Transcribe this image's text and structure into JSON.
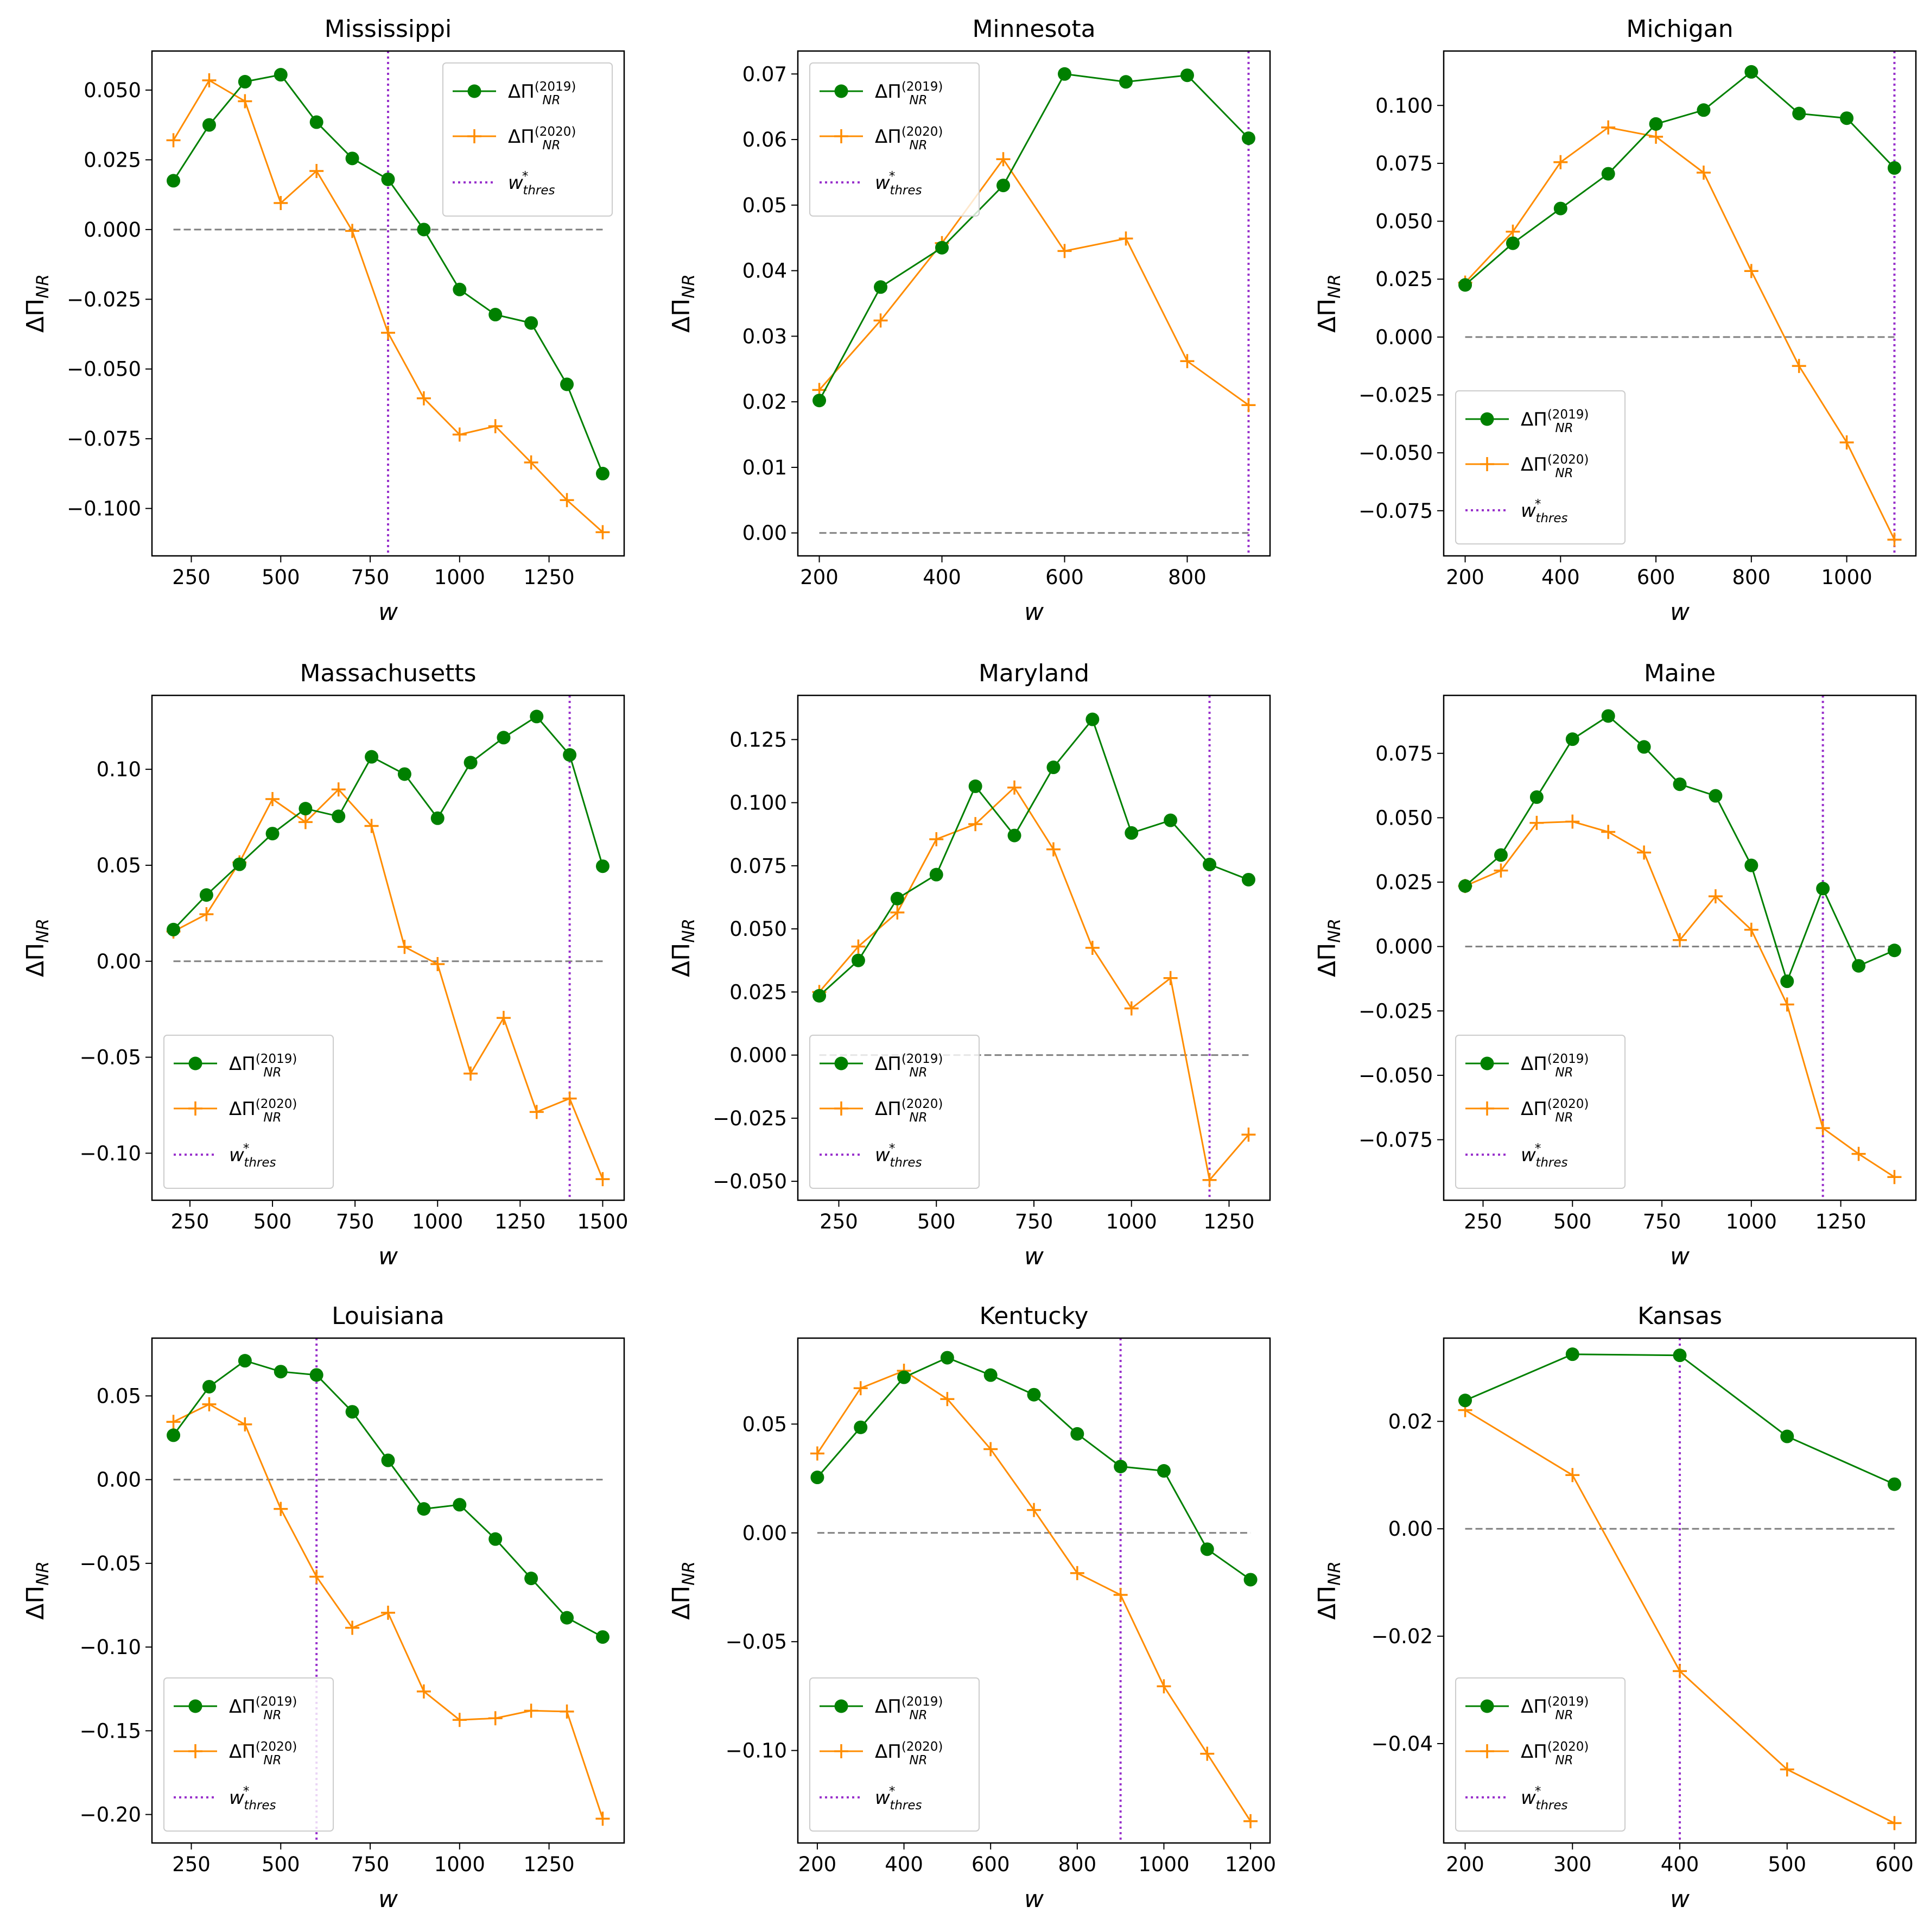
{
  "figure": {
    "ylabel_main": "ΔΠ",
    "ylabel_sub": "NR",
    "xlabel": "w"
  },
  "legend": {
    "series_2019": {
      "main": "ΔΠ",
      "sub": "NR",
      "sup": "(2019)"
    },
    "series_2020": {
      "main": "ΔΠ",
      "sub": "NR",
      "sup": "(2020)"
    },
    "threshold": {
      "main": "w",
      "sub": "thres",
      "sup": "*"
    }
  },
  "colors": {
    "series_2019": "#008000",
    "series_2020": "#ff8c00",
    "threshold": "#9932cc",
    "zero_line": "#808080",
    "axes": "#000000"
  },
  "chart_data": [
    {
      "type": "line",
      "title": "Mississippi",
      "xlabel": "w",
      "ylabel": "ΔΠ_NR",
      "xlim": [
        140,
        1460
      ],
      "ylim": [
        -0.117,
        0.064
      ],
      "xticks": [
        250,
        500,
        750,
        1000,
        1250
      ],
      "xtick_labels": [
        "250",
        "500",
        "750",
        "1000",
        "1250"
      ],
      "yticks": [
        -0.1,
        -0.075,
        -0.05,
        -0.025,
        0,
        0.025,
        0.05
      ],
      "ytick_labels": [
        "−0.100",
        "−0.075",
        "−0.050",
        "−0.025",
        "0.000",
        "0.025",
        "0.050"
      ],
      "x": [
        200,
        300,
        400,
        500,
        600,
        700,
        800,
        900,
        1000,
        1100,
        1200,
        1300,
        1400
      ],
      "series": [
        {
          "name": "ΔΠ_NR^(2019)",
          "values": [
            0.0175,
            0.0375,
            0.053,
            0.0555,
            0.0385,
            0.0255,
            0.018,
            0.0,
            -0.0215,
            -0.0305,
            -0.0335,
            -0.0555,
            -0.0875
          ]
        },
        {
          "name": "ΔΠ_NR^(2020)",
          "values": [
            0.032,
            0.0535,
            0.046,
            0.0095,
            0.021,
            -0.0005,
            -0.037,
            -0.0605,
            -0.0735,
            -0.0705,
            -0.0835,
            -0.097,
            -0.1085
          ]
        }
      ],
      "threshold_w": 800,
      "zero_line_range": [
        200,
        1400
      ],
      "legend_position": "upper right"
    },
    {
      "type": "line",
      "title": "Minnesota",
      "xlabel": "w",
      "ylabel": "ΔΠ_NR",
      "xlim": [
        165,
        935
      ],
      "ylim": [
        -0.0035,
        0.0735
      ],
      "xticks": [
        200,
        400,
        600,
        800
      ],
      "xtick_labels": [
        "200",
        "400",
        "600",
        "800"
      ],
      "yticks": [
        0,
        0.01,
        0.02,
        0.03,
        0.04,
        0.05,
        0.06,
        0.07
      ],
      "ytick_labels": [
        "0.00",
        "0.01",
        "0.02",
        "0.03",
        "0.04",
        "0.05",
        "0.06",
        "0.07"
      ],
      "x": [
        200,
        300,
        400,
        500,
        600,
        700,
        800,
        900
      ],
      "series": [
        {
          "name": "ΔΠ_NR^(2019)",
          "values": [
            0.0202,
            0.0375,
            0.0435,
            0.053,
            0.07,
            0.0688,
            0.0698,
            0.0602
          ]
        },
        {
          "name": "ΔΠ_NR^(2020)",
          "values": [
            0.0218,
            0.0324,
            0.0442,
            0.057,
            0.043,
            0.0449,
            0.0262,
            0.0195
          ]
        }
      ],
      "threshold_w": 900,
      "zero_line_range": [
        200,
        900
      ],
      "legend_position": "upper left"
    },
    {
      "type": "line",
      "title": "Michigan",
      "xlabel": "w",
      "ylabel": "ΔΠ_NR",
      "xlim": [
        155,
        1145
      ],
      "ylim": [
        -0.0945,
        0.1235
      ],
      "xticks": [
        200,
        400,
        600,
        800,
        1000
      ],
      "xtick_labels": [
        "200",
        "400",
        "600",
        "800",
        "1000"
      ],
      "yticks": [
        -0.075,
        -0.05,
        -0.025,
        0,
        0.025,
        0.05,
        0.075,
        0.1
      ],
      "ytick_labels": [
        "−0.075",
        "−0.050",
        "−0.025",
        "0.000",
        "0.025",
        "0.050",
        "0.075",
        "0.100"
      ],
      "x": [
        200,
        300,
        400,
        500,
        600,
        700,
        800,
        900,
        1000,
        1100
      ],
      "series": [
        {
          "name": "ΔΠ_NR^(2019)",
          "values": [
            0.0225,
            0.0405,
            0.0555,
            0.0705,
            0.092,
            0.098,
            0.1145,
            0.0965,
            0.0945,
            0.073
          ]
        },
        {
          "name": "ΔΠ_NR^(2020)",
          "values": [
            0.0235,
            0.0455,
            0.0755,
            0.0905,
            0.0865,
            0.071,
            0.0285,
            -0.0125,
            -0.0455,
            -0.0875
          ]
        }
      ],
      "threshold_w": 1100,
      "zero_line_range": [
        200,
        1100
      ],
      "legend_position": "lower left"
    },
    {
      "type": "line",
      "title": "Massachusetts",
      "xlabel": "w",
      "ylabel": "ΔΠ_NR",
      "xlim": [
        135,
        1565
      ],
      "ylim": [
        -0.1245,
        0.1385
      ],
      "xticks": [
        250,
        500,
        750,
        1000,
        1250,
        1500
      ],
      "xtick_labels": [
        "250",
        "500",
        "750",
        "1000",
        "1250",
        "1500"
      ],
      "yticks": [
        -0.1,
        -0.05,
        0,
        0.05,
        0.1
      ],
      "ytick_labels": [
        "−0.10",
        "−0.05",
        "0.00",
        "0.05",
        "0.10"
      ],
      "x": [
        200,
        300,
        400,
        500,
        600,
        700,
        800,
        900,
        1000,
        1100,
        1200,
        1300,
        1400,
        1500
      ],
      "series": [
        {
          "name": "ΔΠ_NR^(2019)",
          "values": [
            0.0165,
            0.0345,
            0.0505,
            0.0665,
            0.0795,
            0.0755,
            0.1065,
            0.0975,
            0.0745,
            0.1035,
            0.1165,
            0.1275,
            0.1075,
            0.0495
          ]
        },
        {
          "name": "ΔΠ_NR^(2020)",
          "values": [
            0.0155,
            0.0245,
            0.0515,
            0.0845,
            0.0725,
            0.0895,
            0.0705,
            0.0075,
            -0.0015,
            -0.0585,
            -0.0295,
            -0.0785,
            -0.0715,
            -0.1135
          ]
        }
      ],
      "threshold_w": 1400,
      "zero_line_range": [
        200,
        1500
      ],
      "legend_position": "lower left"
    },
    {
      "type": "line",
      "title": "Maryland",
      "xlabel": "w",
      "ylabel": "ΔΠ_NR",
      "xlim": [
        145,
        1355
      ],
      "ylim": [
        -0.0575,
        0.1425
      ],
      "xticks": [
        250,
        500,
        750,
        1000,
        1250
      ],
      "xtick_labels": [
        "250",
        "500",
        "750",
        "1000",
        "1250"
      ],
      "yticks": [
        -0.05,
        -0.025,
        0,
        0.025,
        0.05,
        0.075,
        0.1,
        0.125
      ],
      "ytick_labels": [
        "−0.050",
        "−0.025",
        "0.000",
        "0.025",
        "0.050",
        "0.075",
        "0.100",
        "0.125"
      ],
      "x": [
        200,
        300,
        400,
        500,
        600,
        700,
        800,
        900,
        1000,
        1100,
        1200,
        1300
      ],
      "series": [
        {
          "name": "ΔΠ_NR^(2019)",
          "values": [
            0.0235,
            0.0375,
            0.062,
            0.0715,
            0.1065,
            0.087,
            0.114,
            0.133,
            0.088,
            0.093,
            0.0755,
            0.0695
          ]
        },
        {
          "name": "ΔΠ_NR^(2020)",
          "values": [
            0.025,
            0.043,
            0.0565,
            0.0855,
            0.0915,
            0.106,
            0.0815,
            0.0425,
            0.0185,
            0.0305,
            -0.0495,
            -0.0315
          ]
        }
      ],
      "threshold_w": 1200,
      "zero_line_range": [
        200,
        1300
      ],
      "legend_position": "lower left"
    },
    {
      "type": "line",
      "title": "Maine",
      "xlabel": "w",
      "ylabel": "ΔΠ_NR",
      "xlim": [
        140,
        1460
      ],
      "ylim": [
        -0.0985,
        0.0975
      ],
      "xticks": [
        250,
        500,
        750,
        1000,
        1250
      ],
      "xtick_labels": [
        "250",
        "500",
        "750",
        "1000",
        "1250"
      ],
      "yticks": [
        -0.075,
        -0.05,
        -0.025,
        0,
        0.025,
        0.05,
        0.075
      ],
      "ytick_labels": [
        "−0.075",
        "−0.050",
        "−0.025",
        "0.000",
        "0.025",
        "0.050",
        "0.075"
      ],
      "x": [
        200,
        300,
        400,
        500,
        600,
        700,
        800,
        900,
        1000,
        1100,
        1200,
        1300,
        1400
      ],
      "series": [
        {
          "name": "ΔΠ_NR^(2019)",
          "values": [
            0.0235,
            0.0355,
            0.058,
            0.0805,
            0.0895,
            0.0775,
            0.063,
            0.0585,
            0.0315,
            -0.0135,
            0.0225,
            -0.0075,
            -0.0015
          ]
        },
        {
          "name": "ΔΠ_NR^(2020)",
          "values": [
            0.0235,
            0.0295,
            0.048,
            0.0485,
            0.0445,
            0.0365,
            0.0025,
            0.0195,
            0.0065,
            -0.0225,
            -0.0705,
            -0.0805,
            -0.0895
          ]
        }
      ],
      "threshold_w": 1200,
      "zero_line_range": [
        200,
        1400
      ],
      "legend_position": "lower left"
    },
    {
      "type": "line",
      "title": "Louisiana",
      "xlabel": "w",
      "ylabel": "ΔΠ_NR",
      "xlim": [
        140,
        1460
      ],
      "ylim": [
        -0.217,
        0.0845
      ],
      "xticks": [
        250,
        500,
        750,
        1000,
        1250
      ],
      "xtick_labels": [
        "250",
        "500",
        "750",
        "1000",
        "1250"
      ],
      "yticks": [
        -0.2,
        -0.15,
        -0.1,
        -0.05,
        0,
        0.05
      ],
      "ytick_labels": [
        "−0.20",
        "−0.15",
        "−0.10",
        "−0.05",
        "0.00",
        "0.05"
      ],
      "x": [
        200,
        300,
        400,
        500,
        600,
        700,
        800,
        900,
        1000,
        1100,
        1200,
        1300,
        1400
      ],
      "series": [
        {
          "name": "ΔΠ_NR^(2019)",
          "values": [
            0.0265,
            0.0555,
            0.071,
            0.0645,
            0.0625,
            0.0405,
            0.0115,
            -0.0175,
            -0.015,
            -0.0355,
            -0.059,
            -0.0825,
            -0.094
          ]
        },
        {
          "name": "ΔΠ_NR^(2020)",
          "values": [
            0.0345,
            0.045,
            0.033,
            -0.0175,
            -0.058,
            -0.0885,
            -0.0795,
            -0.1265,
            -0.1435,
            -0.1425,
            -0.138,
            -0.1385,
            -0.2025
          ]
        }
      ],
      "threshold_w": 600,
      "zero_line_range": [
        200,
        1400
      ],
      "legend_position": "lower left"
    },
    {
      "type": "line",
      "title": "Kentucky",
      "xlabel": "w",
      "ylabel": "ΔΠ_NR",
      "xlim": [
        155,
        1245
      ],
      "ylim": [
        -0.1425,
        0.0895
      ],
      "xticks": [
        200,
        400,
        600,
        800,
        1000,
        1200
      ],
      "xtick_labels": [
        "200",
        "400",
        "600",
        "800",
        "1000",
        "1200"
      ],
      "yticks": [
        -0.1,
        -0.05,
        0,
        0.05
      ],
      "ytick_labels": [
        "−0.10",
        "−0.05",
        "0.00",
        "0.05"
      ],
      "x": [
        200,
        300,
        400,
        500,
        600,
        700,
        800,
        900,
        1000,
        1100,
        1200
      ],
      "series": [
        {
          "name": "ΔΠ_NR^(2019)",
          "values": [
            0.0255,
            0.0485,
            0.0715,
            0.0805,
            0.0725,
            0.0635,
            0.0455,
            0.0305,
            0.0285,
            -0.0075,
            -0.0215
          ]
        },
        {
          "name": "ΔΠ_NR^(2020)",
          "values": [
            0.0365,
            0.0665,
            0.0745,
            0.0615,
            0.0385,
            0.0105,
            -0.0185,
            -0.0285,
            -0.0705,
            -0.1015,
            -0.1325
          ]
        }
      ],
      "threshold_w": 900,
      "zero_line_range": [
        200,
        1200
      ],
      "legend_position": "lower left"
    },
    {
      "type": "line",
      "title": "Kansas",
      "xlabel": "w",
      "ylabel": "ΔΠ_NR",
      "xlim": [
        180,
        620
      ],
      "ylim": [
        -0.0585,
        0.0355
      ],
      "xticks": [
        200,
        300,
        400,
        500,
        600
      ],
      "xtick_labels": [
        "200",
        "300",
        "400",
        "500",
        "600"
      ],
      "yticks": [
        -0.04,
        -0.02,
        0,
        0.02
      ],
      "ytick_labels": [
        "−0.04",
        "−0.02",
        "0.00",
        "0.02"
      ],
      "x": [
        200,
        300,
        400,
        500,
        600
      ],
      "series": [
        {
          "name": "ΔΠ_NR^(2019)",
          "values": [
            0.0239,
            0.0325,
            0.0323,
            0.0172,
            0.0083
          ]
        },
        {
          "name": "ΔΠ_NR^(2020)",
          "values": [
            0.0221,
            0.01,
            -0.0265,
            -0.0448,
            -0.0548
          ]
        }
      ],
      "threshold_w": 400,
      "zero_line_range": [
        200,
        600
      ],
      "legend_position": "lower left"
    }
  ]
}
